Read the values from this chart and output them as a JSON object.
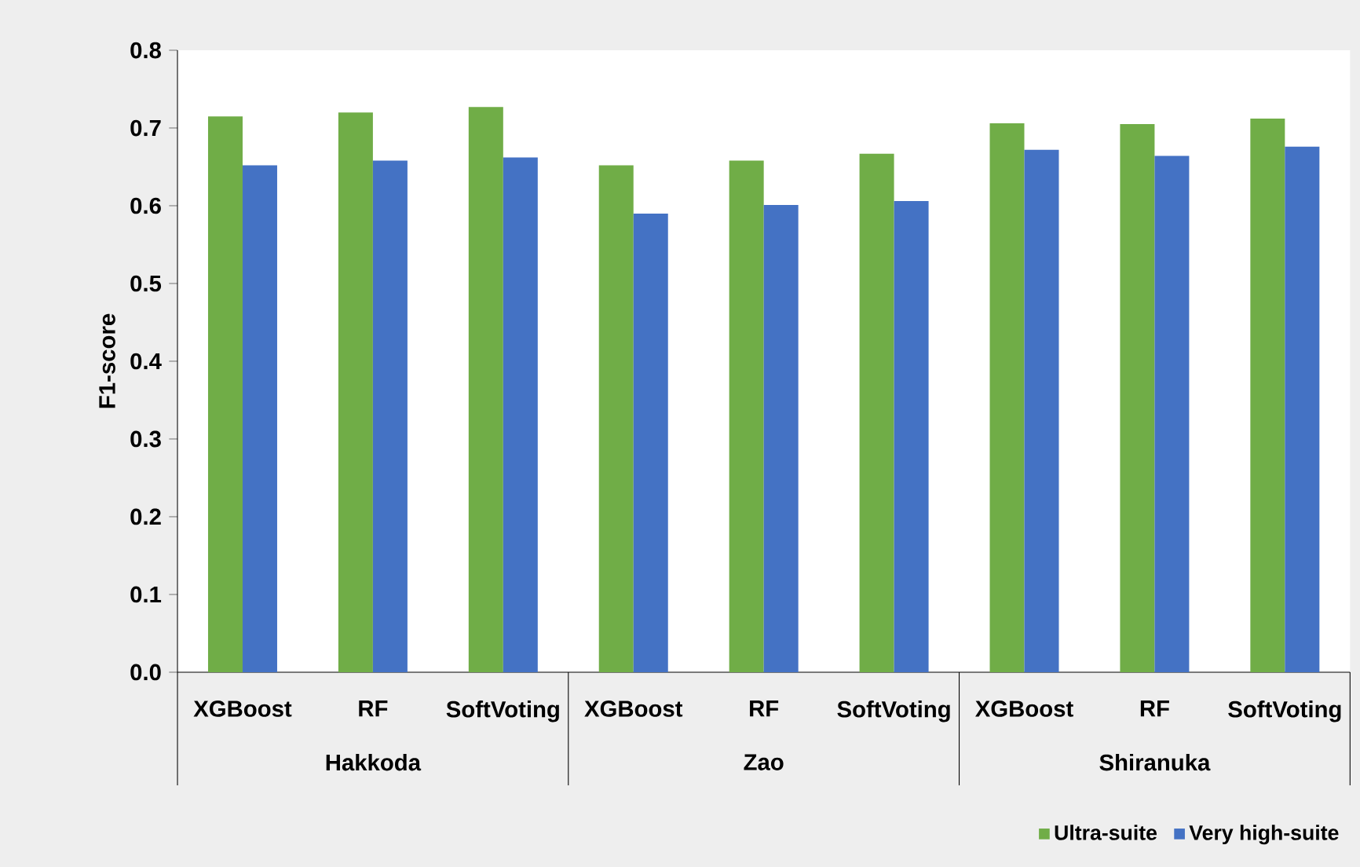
{
  "chart_data": {
    "type": "bar",
    "ylabel": "F1-score",
    "categories": [
      "XGBoost",
      "RF",
      "SoftVoting",
      "XGBoost",
      "RF",
      "SoftVoting",
      "XGBoost",
      "RF",
      "SoftVoting"
    ],
    "series": [
      {
        "name": "Ultra-suite",
        "color": "#70ad47",
        "values": [
          0.715,
          0.72,
          0.727,
          0.652,
          0.658,
          0.667,
          0.706,
          0.705,
          0.712
        ]
      },
      {
        "name": "Very high-suite",
        "color": "#4472c4",
        "values": [
          0.652,
          0.658,
          0.662,
          0.59,
          0.601,
          0.606,
          0.672,
          0.664,
          0.676
        ]
      }
    ],
    "annotations": [
      "Hakkoda",
      "Zao",
      "Shiranuka"
    ],
    "ylim": [
      0,
      0.8
    ],
    "yticks": [
      {
        "value": 0,
        "label": "0.0"
      },
      0.1,
      0.2,
      0.3,
      0.4,
      0.5,
      0.6,
      0.7,
      0.8
    ],
    "legend": "bottom right"
  }
}
